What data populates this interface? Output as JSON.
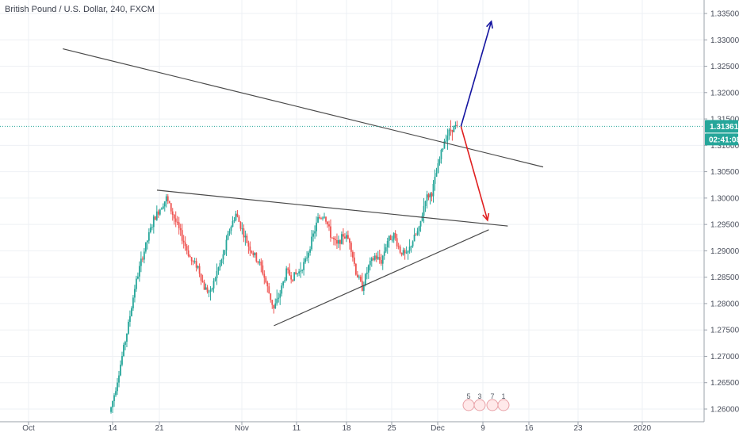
{
  "chart_data": {
    "type": "candlestick",
    "title": "British Pound / U.S. Dollar, 240, FXCM",
    "y_ticks": [
      "1.33500",
      "1.33000",
      "1.32500",
      "1.32000",
      "1.31500",
      "1.31000",
      "1.30500",
      "1.30000",
      "1.29500",
      "1.29000",
      "1.28500",
      "1.28000",
      "1.27500",
      "1.27000",
      "1.26500",
      "1.26000"
    ],
    "ylim": [
      1.2585,
      1.3375
    ],
    "x_ticks": [
      "Oct",
      "14",
      "21",
      "Nov",
      "11",
      "18",
      "25",
      "Dec",
      "9",
      "16",
      "23",
      "2020"
    ],
    "current_price": "1.31361",
    "countdown": "02:41:08",
    "events": [
      "5",
      "3",
      "7",
      "1"
    ],
    "price_path": [
      [
        -1,
        1.259
      ],
      [
        0,
        1.264
      ],
      [
        1,
        1.27
      ],
      [
        2,
        1.276
      ],
      [
        3,
        1.283
      ],
      [
        4,
        1.288
      ],
      [
        5,
        1.292
      ],
      [
        6,
        1.296
      ],
      [
        7,
        1.298
      ],
      [
        8,
        1.3
      ],
      [
        9,
        1.297
      ],
      [
        10,
        1.294
      ],
      [
        11,
        1.291
      ],
      [
        12,
        1.288
      ],
      [
        13,
        1.287
      ],
      [
        14,
        1.283
      ],
      [
        15,
        1.282
      ],
      [
        16,
        1.286
      ],
      [
        17,
        1.289
      ],
      [
        18,
        1.294
      ],
      [
        19,
        1.297
      ],
      [
        20,
        1.294
      ],
      [
        21,
        1.291
      ],
      [
        22,
        1.289
      ],
      [
        23,
        1.287
      ],
      [
        24,
        1.283
      ],
      [
        25,
        1.279
      ],
      [
        26,
        1.282
      ],
      [
        27,
        1.286
      ],
      [
        28,
        1.285
      ],
      [
        29,
        1.286
      ],
      [
        30,
        1.288
      ],
      [
        31,
        1.292
      ],
      [
        32,
        1.296
      ],
      [
        33,
        1.297
      ],
      [
        34,
        1.293
      ],
      [
        35,
        1.291
      ],
      [
        36,
        1.293
      ],
      [
        37,
        1.292
      ],
      [
        38,
        1.286
      ],
      [
        39,
        1.283
      ],
      [
        40,
        1.287
      ],
      [
        41,
        1.289
      ],
      [
        42,
        1.288
      ],
      [
        43,
        1.292
      ],
      [
        44,
        1.293
      ],
      [
        45,
        1.29
      ],
      [
        46,
        1.289
      ],
      [
        47,
        1.292
      ],
      [
        48,
        1.294
      ],
      [
        49,
        1.3
      ],
      [
        50,
        1.301
      ],
      [
        51,
        1.306
      ],
      [
        52,
        1.311
      ],
      [
        53,
        1.313
      ],
      [
        54,
        1.3136
      ]
    ],
    "trendlines": [
      {
        "name": "upper-resistance",
        "color": "#4a4a4a",
        "from": [
          -8.5,
          1.3283
        ],
        "to": [
          67.5,
          1.3059
        ]
      },
      {
        "name": "upper-triangle",
        "color": "#4a4a4a",
        "from": [
          6.4,
          1.3015
        ],
        "to": [
          61.9,
          1.2947
        ]
      },
      {
        "name": "lower-triangle",
        "color": "#4a4a4a",
        "from": [
          24.9,
          1.2758
        ],
        "to": [
          58.9,
          1.294
        ]
      }
    ],
    "arrows": [
      {
        "name": "bullish-arrow",
        "color": "#1414a0",
        "from": [
          54.5,
          1.3136
        ],
        "to": [
          59.3,
          1.3335
        ]
      },
      {
        "name": "bearish-arrow",
        "color": "#e02020",
        "from": [
          54.5,
          1.3136
        ],
        "to": [
          58.7,
          1.2958
        ]
      }
    ],
    "colors": {
      "up": "#26a69a",
      "down": "#ef5350",
      "grid": "#eef0f4",
      "price_line": "#26a69a",
      "axis_text": "#4a4f5c"
    }
  }
}
